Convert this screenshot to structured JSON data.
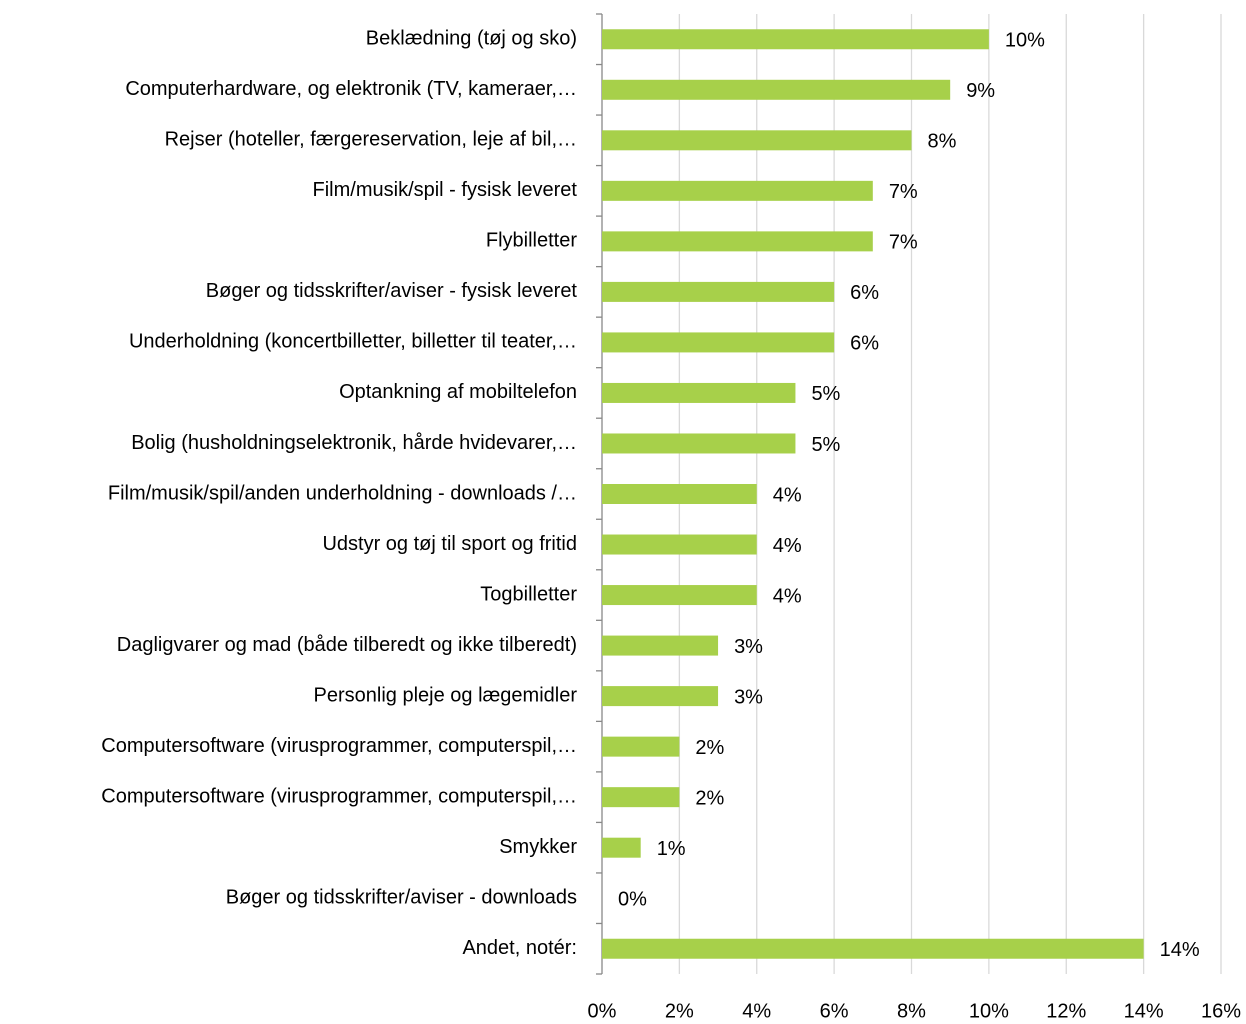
{
  "chart_data": {
    "type": "bar",
    "orientation": "horizontal",
    "categories": [
      "Beklædning (tøj og sko)",
      "Computerhardware, og elektronik (TV, kameraer,…",
      "Rejser (hoteller, færgereservation, leje af bil,…",
      "Film/musik/spil - fysisk leveret",
      "Flybilletter",
      "Bøger og tidsskrifter/aviser - fysisk leveret",
      "Underholdning (koncertbilletter, billetter til teater,…",
      "Optankning af mobiltelefon",
      "Bolig (husholdningselektronik, hårde hvidevarer,…",
      "Film/musik/spil/anden underholdning - downloads /…",
      "Udstyr og tøj til sport og fritid",
      "Togbilletter",
      "Dagligvarer og mad (både tilberedt og ikke tilberedt)",
      "Personlig pleje og lægemidler",
      "Computersoftware (virusprogrammer, computerspil,…",
      "Computersoftware (virusprogrammer, computerspil,…",
      "Smykker",
      "Bøger og tidsskrifter/aviser - downloads",
      "Andet, notér:"
    ],
    "values": [
      10,
      9,
      8,
      7,
      7,
      6,
      6,
      5,
      5,
      4,
      4,
      4,
      3,
      3,
      2,
      2,
      1,
      0,
      14
    ],
    "value_labels": [
      "10%",
      "9%",
      "8%",
      "7%",
      "7%",
      "6%",
      "6%",
      "5%",
      "5%",
      "4%",
      "4%",
      "4%",
      "3%",
      "3%",
      "2%",
      "2%",
      "1%",
      "0%",
      "14%"
    ],
    "color": "#a7d04a",
    "xlim": [
      0,
      16
    ],
    "xticks": [
      {
        "value": 0,
        "label": "0%"
      },
      {
        "value": 2,
        "label": "2%"
      },
      {
        "value": 4,
        "label": "4%"
      },
      {
        "value": 6,
        "label": "6%"
      },
      {
        "value": 8,
        "label": "8%"
      },
      {
        "value": 10,
        "label": "10%"
      },
      {
        "value": 12,
        "label": "12%"
      },
      {
        "value": 14,
        "label": "14%"
      },
      {
        "value": 16,
        "label": "16%"
      }
    ],
    "grid": true
  }
}
